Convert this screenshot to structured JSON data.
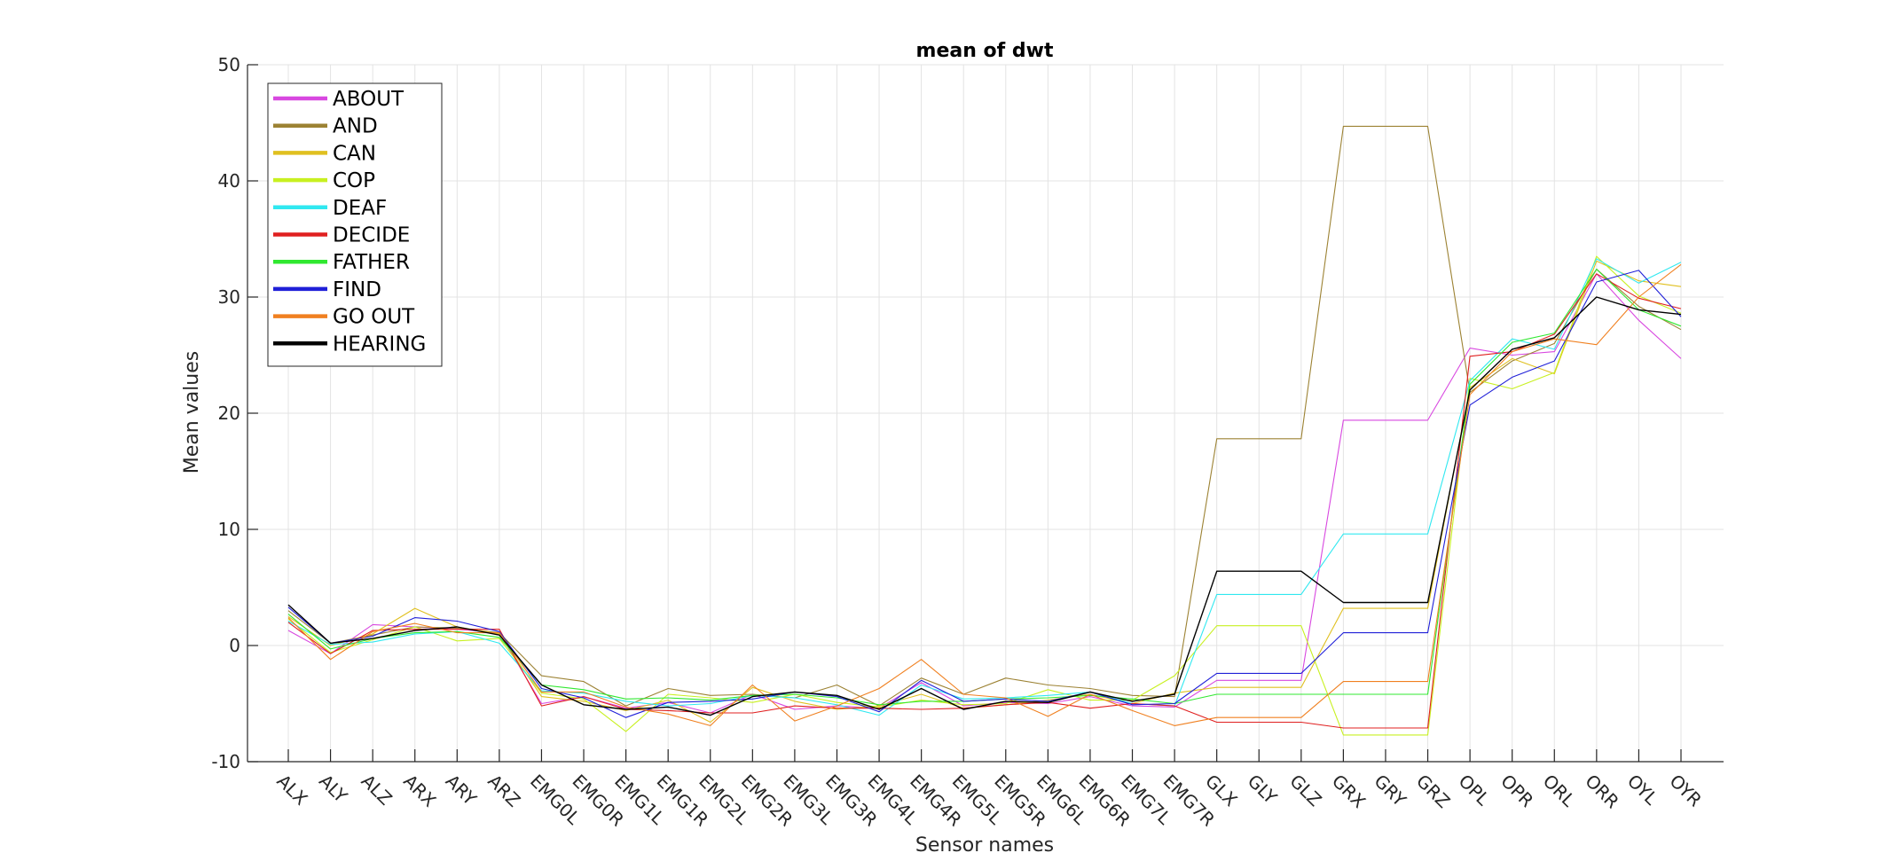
{
  "chart_data": {
    "type": "line",
    "title": "mean of dwt",
    "xlabel": "Sensor names",
    "ylabel": "Mean values",
    "ylim": [
      -10,
      50
    ],
    "yticks": [
      -10,
      0,
      10,
      20,
      30,
      40,
      50
    ],
    "grid": true,
    "legend_position": "top-left",
    "categories": [
      "ALX",
      "ALY",
      "ALZ",
      "ARX",
      "ARY",
      "ARZ",
      "EMG0L",
      "EMG0R",
      "EMG1L",
      "EMG1R",
      "EMG2L",
      "EMG2R",
      "EMG3L",
      "EMG3R",
      "EMG4L",
      "EMG4R",
      "EMG5L",
      "EMG5R",
      "EMG6L",
      "EMG6R",
      "EMG7L",
      "EMG7R",
      "GLX",
      "GLY",
      "GLZ",
      "GRX",
      "GRY",
      "GRZ",
      "OPL",
      "OPR",
      "ORL",
      "ORR",
      "OYL",
      "OYR"
    ],
    "series": [
      {
        "name": "ABOUT",
        "color": "#d848e0",
        "values": [
          1.3,
          -0.7,
          1.8,
          1.6,
          1.4,
          1.1,
          -5.0,
          -4.4,
          -5.4,
          -4.9,
          -5.8,
          -4.2,
          -5.5,
          -5.2,
          -5.4,
          -3.2,
          -5.2,
          -4.9,
          -5.0,
          -4.4,
          -5.2,
          -5.3,
          -3.0,
          -3.0,
          -3.0,
          19.4,
          19.4,
          19.4,
          25.6,
          25.0,
          25.3,
          32.0,
          28.0,
          24.7
        ]
      },
      {
        "name": "AND",
        "color": "#9c8233",
        "values": [
          3.0,
          0.2,
          0.9,
          1.6,
          1.5,
          1.1,
          -2.6,
          -3.1,
          -5.2,
          -3.7,
          -4.3,
          -4.2,
          -4.5,
          -3.4,
          -5.2,
          -2.8,
          -4.2,
          -2.8,
          -3.4,
          -3.7,
          -4.3,
          -4.4,
          17.8,
          17.8,
          17.8,
          44.7,
          44.7,
          44.7,
          21.8,
          24.5,
          26.0,
          32.4,
          29.2,
          27.2
        ]
      },
      {
        "name": "CAN",
        "color": "#e0c020",
        "values": [
          2.5,
          0.0,
          1.0,
          3.2,
          1.6,
          1.0,
          -4.4,
          -4.8,
          -5.6,
          -4.7,
          -6.6,
          -3.6,
          -4.8,
          -5.5,
          -5.2,
          -4.2,
          -5.4,
          -5.1,
          -4.7,
          -4.2,
          -5.0,
          -4.1,
          -3.6,
          -3.6,
          -3.6,
          3.2,
          3.2,
          3.2,
          22.2,
          24.7,
          23.4,
          33.1,
          31.4,
          30.9
        ]
      },
      {
        "name": "COP",
        "color": "#c8f020",
        "values": [
          2.3,
          -0.6,
          0.5,
          1.6,
          0.4,
          0.6,
          -4.1,
          -4.6,
          -7.4,
          -4.2,
          -4.5,
          -4.9,
          -4.2,
          -4.9,
          -5.3,
          -4.7,
          -5.1,
          -5.0,
          -3.8,
          -4.7,
          -4.7,
          -2.6,
          1.7,
          1.7,
          1.7,
          -7.7,
          -7.7,
          -7.7,
          23.0,
          22.1,
          23.5,
          33.5,
          30.1,
          28.6
        ]
      },
      {
        "name": "DEAF",
        "color": "#30e8f0",
        "values": [
          2.1,
          0.1,
          0.3,
          1.0,
          1.2,
          0.2,
          -3.9,
          -4.1,
          -4.8,
          -5.2,
          -5.0,
          -4.3,
          -4.5,
          -5.1,
          -6.0,
          -3.4,
          -4.6,
          -4.5,
          -4.3,
          -4.0,
          -5.0,
          -5.2,
          4.4,
          4.4,
          4.4,
          9.6,
          9.6,
          9.6,
          22.8,
          26.4,
          25.5,
          33.3,
          31.2,
          33.0
        ]
      },
      {
        "name": "DECIDE",
        "color": "#e02020",
        "values": [
          2.0,
          -0.7,
          1.3,
          1.4,
          1.4,
          1.4,
          -5.2,
          -4.4,
          -5.5,
          -5.6,
          -5.8,
          -5.8,
          -5.2,
          -5.4,
          -5.4,
          -5.5,
          -5.4,
          -5.1,
          -4.9,
          -5.4,
          -5.0,
          -5.2,
          -6.6,
          -6.6,
          -6.6,
          -7.1,
          -7.1,
          -7.1,
          24.9,
          25.3,
          26.8,
          32.0,
          29.9,
          29.0
        ]
      },
      {
        "name": "FATHER",
        "color": "#30e830",
        "values": [
          2.7,
          -0.3,
          0.6,
          1.1,
          1.2,
          0.7,
          -3.4,
          -3.8,
          -4.6,
          -4.5,
          -4.7,
          -4.3,
          -4.2,
          -4.5,
          -5.1,
          -4.8,
          -4.8,
          -4.6,
          -4.5,
          -4.3,
          -4.6,
          -5.0,
          -4.2,
          -4.2,
          -4.2,
          -4.2,
          -4.2,
          -4.2,
          22.5,
          26.1,
          26.9,
          32.4,
          28.9,
          27.5
        ]
      },
      {
        "name": "FIND",
        "color": "#2020d8",
        "values": [
          3.3,
          0.2,
          0.8,
          2.4,
          2.1,
          1.2,
          -3.7,
          -4.5,
          -6.2,
          -4.9,
          -4.8,
          -4.6,
          -4.0,
          -4.4,
          -5.7,
          -3.0,
          -4.8,
          -4.6,
          -4.8,
          -4.0,
          -5.1,
          -5.0,
          -2.4,
          -2.4,
          -2.4,
          1.1,
          1.1,
          1.1,
          20.7,
          23.1,
          24.5,
          31.3,
          32.3,
          28.3
        ]
      },
      {
        "name": "GO OUT",
        "color": "#f08020",
        "values": [
          2.4,
          -1.2,
          1.2,
          1.9,
          1.1,
          1.1,
          -4.0,
          -4.0,
          -5.3,
          -5.9,
          -6.9,
          -3.4,
          -6.5,
          -5.2,
          -3.7,
          -1.2,
          -4.2,
          -4.5,
          -6.1,
          -4.2,
          -5.6,
          -6.9,
          -6.2,
          -6.2,
          -6.2,
          -3.1,
          -3.1,
          -3.1,
          21.6,
          25.3,
          26.4,
          25.9,
          30.0,
          32.8
        ]
      },
      {
        "name": "HEARING",
        "color": "#000000",
        "values": [
          3.5,
          0.2,
          0.6,
          1.3,
          1.6,
          0.9,
          -3.4,
          -5.1,
          -5.5,
          -5.3,
          -6.0,
          -4.4,
          -4.0,
          -4.3,
          -5.5,
          -3.7,
          -5.5,
          -4.8,
          -4.9,
          -4.0,
          -4.8,
          -4.2,
          6.4,
          6.4,
          6.4,
          3.7,
          3.7,
          3.7,
          22.0,
          25.5,
          26.5,
          30.0,
          28.9,
          28.5
        ]
      }
    ]
  }
}
